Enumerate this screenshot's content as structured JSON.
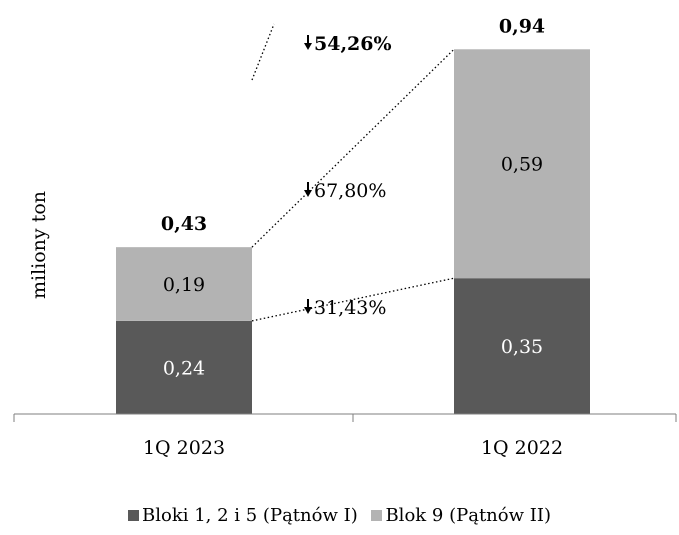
{
  "chart_data": {
    "type": "bar",
    "stacked": true,
    "categories": [
      "1Q 2023",
      "1Q 2022"
    ],
    "series": [
      {
        "name": "Bloki 1, 2 i 5 (Pątnów I)",
        "values": [
          0.24,
          0.35
        ],
        "labels": [
          "0,24",
          "0,35"
        ],
        "color": "#595959"
      },
      {
        "name": "Blok 9 (Pątnów II)",
        "values": [
          0.19,
          0.59
        ],
        "labels": [
          "0,19",
          "0,59"
        ],
        "color": "#b3b3b3"
      }
    ],
    "totals": [
      "0,43",
      "0,94"
    ],
    "ylabel": "miliony ton",
    "xlabel": "",
    "title": "",
    "ylim": [
      0,
      1.0
    ],
    "grid": false,
    "legend_position": "bottom",
    "annotations": [
      {
        "text": "54,26%",
        "arrow": "down",
        "target": "total"
      },
      {
        "text": "67,80%",
        "arrow": "down",
        "target": "Blok 9 (Pątnów II)"
      },
      {
        "text": "31,43%",
        "arrow": "down",
        "target": "Bloki 1, 2 i 5 (Pątnów I)"
      }
    ]
  }
}
